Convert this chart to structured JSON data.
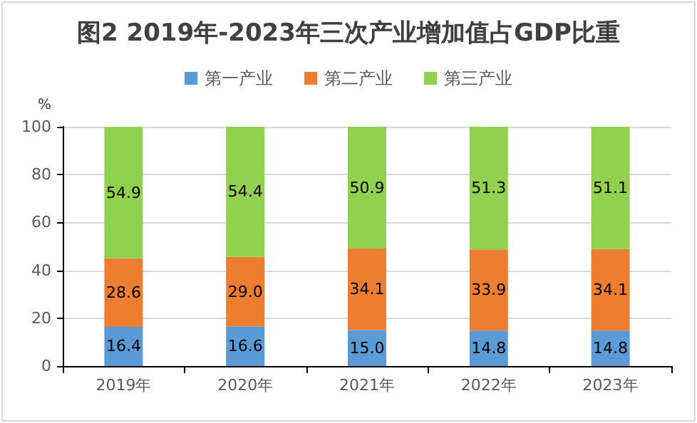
{
  "chart_data": {
    "type": "bar",
    "title": "图2 2019年-2023年三次产业增加值占GDP比重",
    "ylabel": "%",
    "categories": [
      "2019年",
      "2020年",
      "2021年",
      "2022年",
      "2023年"
    ],
    "series": [
      {
        "name": "第一产业",
        "color": "#5b9bd5",
        "values": [
          16.4,
          16.6,
          15.0,
          14.8,
          14.8
        ],
        "value_labels": [
          "16.4",
          "16.6",
          "15.0",
          "14.8",
          "14.8"
        ]
      },
      {
        "name": "第二产业",
        "color": "#ed7d31",
        "values": [
          28.6,
          29.0,
          34.1,
          33.9,
          34.1
        ],
        "value_labels": [
          "28.6",
          "29.0",
          "34.1",
          "33.9",
          "34.1"
        ]
      },
      {
        "name": "第三产业",
        "color": "#92d050",
        "values": [
          54.9,
          54.4,
          50.9,
          51.3,
          51.1
        ],
        "value_labels": [
          "54.9",
          "54.4",
          "50.9",
          "51.3",
          "51.1"
        ]
      }
    ],
    "stacked": true,
    "ylim": [
      0,
      100
    ],
    "yticks": [
      0,
      20,
      40,
      60,
      80,
      100
    ],
    "grid": "y",
    "legend": "top"
  }
}
